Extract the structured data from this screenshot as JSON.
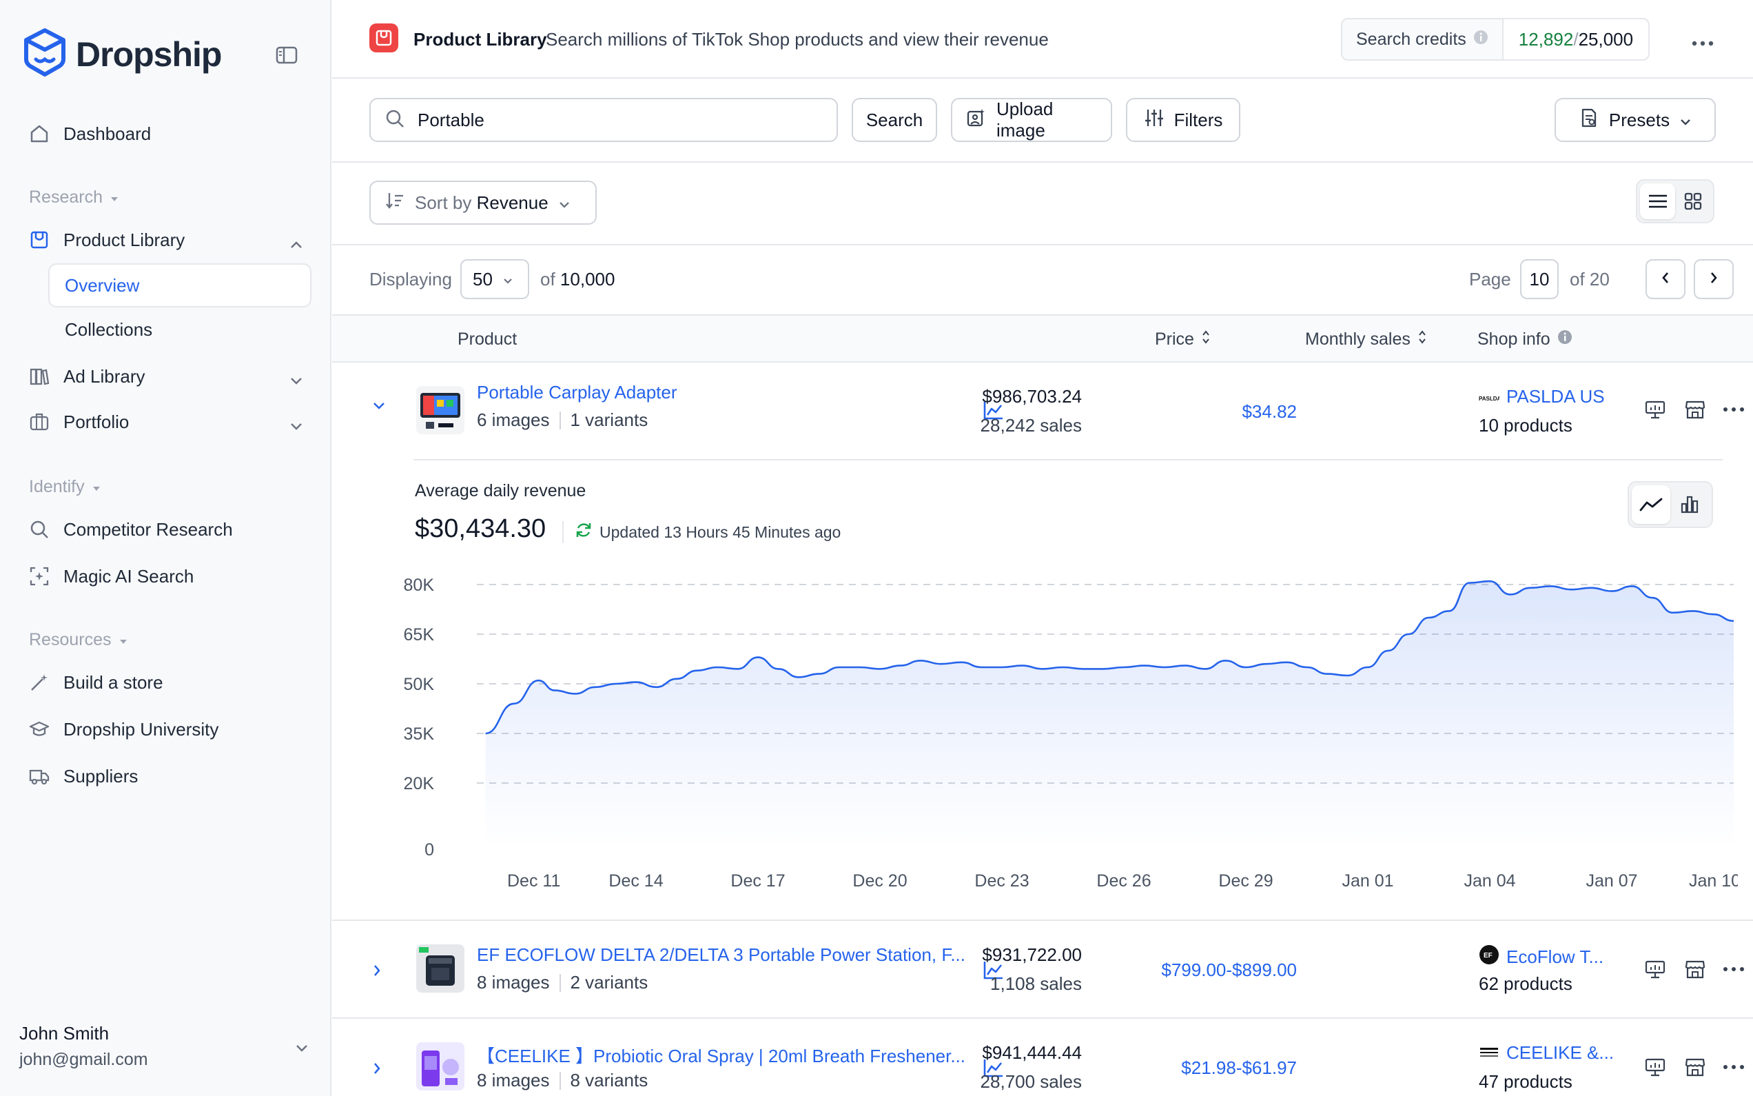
{
  "sidebar": {
    "brand": "Dropship",
    "items": {
      "dashboard": "Dashboard",
      "research_section": "Research",
      "product_library": "Product Library",
      "overview": "Overview",
      "collections": "Collections",
      "ad_library": "Ad Library",
      "portfolio": "Portfolio",
      "identify_section": "Identify",
      "competitor_research": "Competitor Research",
      "magic_ai_search": "Magic AI Search",
      "resources_section": "Resources",
      "build_store": "Build a store",
      "university": "Dropship University",
      "suppliers": "Suppliers"
    },
    "user": {
      "name": "John Smith",
      "email": "john@gmail.com"
    }
  },
  "header": {
    "title": "Product Library",
    "description": "Search millions of TikTok Shop products and view their revenue",
    "credits_label": "Search credits",
    "credits_used": "12,892",
    "credits_sep": "/",
    "credits_total": "25,000"
  },
  "search": {
    "value": "Portable",
    "search_label": "Search",
    "upload_label": "Upload image",
    "filters_label": "Filters",
    "presets_label": "Presets"
  },
  "sort": {
    "prefix": "Sort by",
    "value": "Revenue"
  },
  "paging": {
    "displaying_label": "Displaying",
    "per_page": "50",
    "of_label": "of",
    "total": "10,000",
    "page_label": "Page",
    "page": "10",
    "page_of": "of 20"
  },
  "table": {
    "headers": {
      "product": "Product",
      "price": "Price",
      "monthly_sales": "Monthly sales",
      "shop_info": "Shop info"
    },
    "rows": [
      {
        "name": "Portable Carplay Adapter",
        "images": "6 images",
        "variants": "1 variants",
        "price": "$34.82",
        "revenue": "$986,703.24",
        "sales": "28,242 sales",
        "shop": "PASLDA US",
        "shop_products": "10 products"
      },
      {
        "name": "EF ECOFLOW DELTA 2/DELTA 3 Portable Power Station, F...",
        "images": "8 images",
        "variants": "2 variants",
        "price": "$799.00-$899.00",
        "revenue": "$931,722.00",
        "sales": "1,108 sales",
        "shop": "EcoFlow T...",
        "shop_products": "62 products"
      },
      {
        "name": "【CEELIKE 】Probiotic Oral Spray | 20ml Breath Freshener...",
        "images": "8 images",
        "variants": "8 variants",
        "price": "$21.98-$61.97",
        "revenue": "$941,444.44",
        "sales": "28,700 sales",
        "shop": "CEELIKE &...",
        "shop_products": "47 products"
      }
    ]
  },
  "detail": {
    "title": "Average daily revenue",
    "value": "$30,434.30",
    "updated": "Updated 13 Hours 45 Minutes ago"
  },
  "chart_data": {
    "type": "area",
    "title": "Average daily revenue",
    "ylim": [
      0,
      80000
    ],
    "y_ticks": [
      "0",
      "20K",
      "35K",
      "50K",
      "65K",
      "80K"
    ],
    "y_tick_values": [
      0,
      20000,
      35000,
      50000,
      65000,
      80000
    ],
    "x_ticks": [
      "Dec 11",
      "Dec 14",
      "Dec 17",
      "Dec 20",
      "Dec 23",
      "Dec 26",
      "Dec 29",
      "Jan 01",
      "Jan 04",
      "Jan 07",
      "Jan 10"
    ],
    "x_range": [
      0,
      30
    ],
    "x_tick_positions": [
      0,
      3,
      6,
      9,
      12,
      15,
      18,
      21,
      24,
      27,
      30
    ],
    "values": [
      [
        -0.7,
        35000
      ],
      [
        0,
        44000
      ],
      [
        0.6,
        51000
      ],
      [
        1,
        48000
      ],
      [
        1.5,
        47000
      ],
      [
        2,
        49000
      ],
      [
        2.5,
        50000
      ],
      [
        3,
        50500
      ],
      [
        3.5,
        49000
      ],
      [
        4,
        51500
      ],
      [
        4.5,
        54000
      ],
      [
        5,
        55000
      ],
      [
        5.5,
        54500
      ],
      [
        6,
        58000
      ],
      [
        6.5,
        54500
      ],
      [
        7,
        52000
      ],
      [
        7.5,
        53000
      ],
      [
        8,
        55000
      ],
      [
        8.5,
        55000
      ],
      [
        9,
        54500
      ],
      [
        9.5,
        55500
      ],
      [
        10,
        57000
      ],
      [
        10.5,
        56000
      ],
      [
        11,
        56500
      ],
      [
        11.5,
        55000
      ],
      [
        12,
        55000
      ],
      [
        12.5,
        55500
      ],
      [
        13,
        54500
      ],
      [
        13.5,
        55000
      ],
      [
        14,
        54500
      ],
      [
        14.5,
        54500
      ],
      [
        15,
        55000
      ],
      [
        15.5,
        55500
      ],
      [
        16,
        55000
      ],
      [
        16.5,
        55500
      ],
      [
        17,
        54500
      ],
      [
        17.5,
        57000
      ],
      [
        18,
        55000
      ],
      [
        18.5,
        56000
      ],
      [
        19,
        56500
      ],
      [
        19.5,
        55000
      ],
      [
        20,
        53000
      ],
      [
        20.5,
        52500
      ],
      [
        21,
        55000
      ],
      [
        21.5,
        60000
      ],
      [
        22,
        65000
      ],
      [
        22.5,
        70000
      ],
      [
        23,
        72000
      ],
      [
        23.5,
        80500
      ],
      [
        24,
        81000
      ],
      [
        24.5,
        77000
      ],
      [
        25,
        79000
      ],
      [
        25.5,
        79500
      ],
      [
        26,
        78500
      ],
      [
        26.5,
        79000
      ],
      [
        27,
        78000
      ],
      [
        27.5,
        79500
      ],
      [
        28,
        76000
      ],
      [
        28.5,
        71500
      ],
      [
        29,
        72000
      ],
      [
        29.5,
        71000
      ],
      [
        30,
        69000
      ]
    ],
    "grid": true,
    "legend": "none"
  }
}
